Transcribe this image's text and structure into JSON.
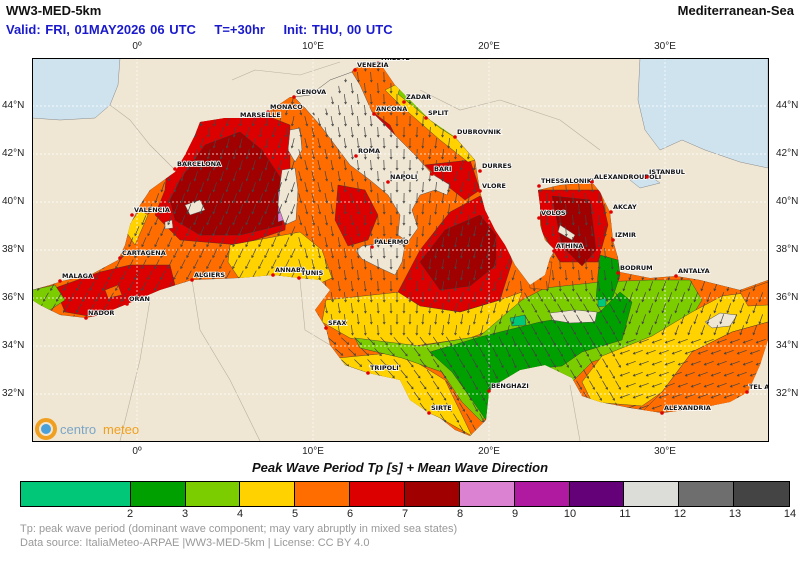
{
  "header": {
    "title": "WW3-MED-5km",
    "region": "Mediterranean-Sea",
    "valid": "Valid: FRI, 01MAY2026 06 UTC",
    "lead": "T=+30hr",
    "init": "Init: THU, 00 UTC"
  },
  "axes": {
    "lon_labels": [
      "0º",
      "10°E",
      "20°E",
      "30°E"
    ],
    "lat_labels": [
      "44°N",
      "42°N",
      "40°N",
      "38°N",
      "36°N",
      "34°N",
      "32°N"
    ],
    "lon_range": [
      -6,
      36
    ],
    "lat_range": [
      30,
      46
    ],
    "grid": true
  },
  "map": {
    "cities": [
      "TRIESTE",
      "VENEZIA",
      "GENOVA",
      "MONACO",
      "MARSEILLE",
      "BARCELONA",
      "VALENCIA",
      "CARTAGENA",
      "MALAGA",
      "NADOR",
      "ORAN",
      "ALGIERS",
      "ANNABA",
      "TUNIS",
      "ROMA",
      "NAPOLI",
      "PALERMO",
      "ANCONA",
      "ZADAR",
      "SPLIT",
      "DUBROVNIK",
      "BARI",
      "DURRES",
      "VLORE",
      "THESSALONIKI",
      "ALEXANDROUPOLI",
      "ISTANBUL",
      "VOLOS",
      "AKCAY",
      "IZMIR",
      "ATHINA",
      "BODRUM",
      "ANTALYA",
      "SFAX",
      "TRIPOLI",
      "BENGHAZI",
      "SIRTE",
      "ALEXANDRIA",
      "TEL AVIV"
    ],
    "colors": {
      "land": "#efe6d3",
      "water_outside": "#cfe3ef",
      "city_dot": "#e00000",
      "arrow": "#444444"
    },
    "logo": "centro meteo"
  },
  "legend": {
    "title": "Peak Wave Period Tp [s]  +  Mean Wave Direction",
    "bins": [
      {
        "from": null,
        "to": 2,
        "color": "#00c878"
      },
      {
        "from": 2,
        "to": 3,
        "color": "#00a000"
      },
      {
        "from": 3,
        "to": 4,
        "color": "#7ccd00"
      },
      {
        "from": 4,
        "to": 5,
        "color": "#ffd200"
      },
      {
        "from": 5,
        "to": 6,
        "color": "#ff6c00"
      },
      {
        "from": 6,
        "to": 7,
        "color": "#dc0000"
      },
      {
        "from": 7,
        "to": 8,
        "color": "#a00000"
      },
      {
        "from": 8,
        "to": 9,
        "color": "#dc82d2"
      },
      {
        "from": 9,
        "to": 10,
        "color": "#b01aa0"
      },
      {
        "from": 10,
        "to": 11,
        "color": "#640078"
      },
      {
        "from": 11,
        "to": 12,
        "color": "#dcdcd8"
      },
      {
        "from": 12,
        "to": 13,
        "color": "#6e6e6e"
      },
      {
        "from": 13,
        "to": 14,
        "color": "#444444"
      }
    ],
    "ticks": [
      "2",
      "3",
      "4",
      "5",
      "6",
      "7",
      "8",
      "9",
      "10",
      "11",
      "12",
      "13",
      "14"
    ]
  },
  "footer": {
    "note": "Tp: peak wave period (dominant wave component; may vary abruptly in mixed sea states)",
    "source": "Data source: ItaliaMeteo-ARPAE |WW3-MED-5km | License: CC BY 4.0"
  }
}
